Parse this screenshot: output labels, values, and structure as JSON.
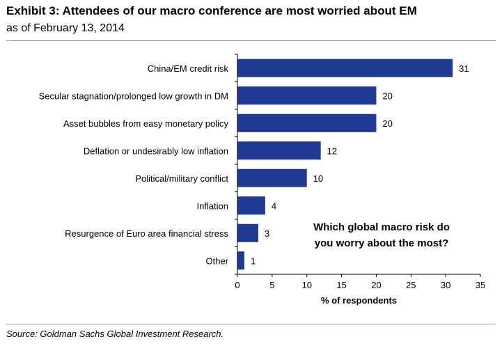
{
  "header": {
    "title": "Exhibit 3: Attendees of our macro conference are most worried about EM",
    "subtitle": "as of February 13, 2014"
  },
  "footer": {
    "source": "Source: Goldman Sachs Global Investment Research."
  },
  "chart_data": {
    "type": "bar",
    "orientation": "horizontal",
    "categories": [
      "China/EM credit risk",
      "Secular stagnation/prolonged low growth in DM",
      "Asset bubbles from easy monetary policy",
      "Deflation or undesirably low inflation",
      "Political/military conflict",
      "Inflation",
      "Resurgence of Euro area financial stress",
      "Other"
    ],
    "values": [
      31,
      20,
      20,
      12,
      10,
      4,
      3,
      1
    ],
    "xlabel": "% of respondents",
    "ylabel": "",
    "xlim": [
      0,
      35
    ],
    "xticks": [
      "0",
      "5",
      "10",
      "15",
      "20",
      "25",
      "30",
      "35"
    ],
    "annotation": [
      "Which global macro risk do",
      "you worry about the most?"
    ],
    "bar_color": "#1f3a93",
    "grid": false,
    "legend": "none"
  }
}
